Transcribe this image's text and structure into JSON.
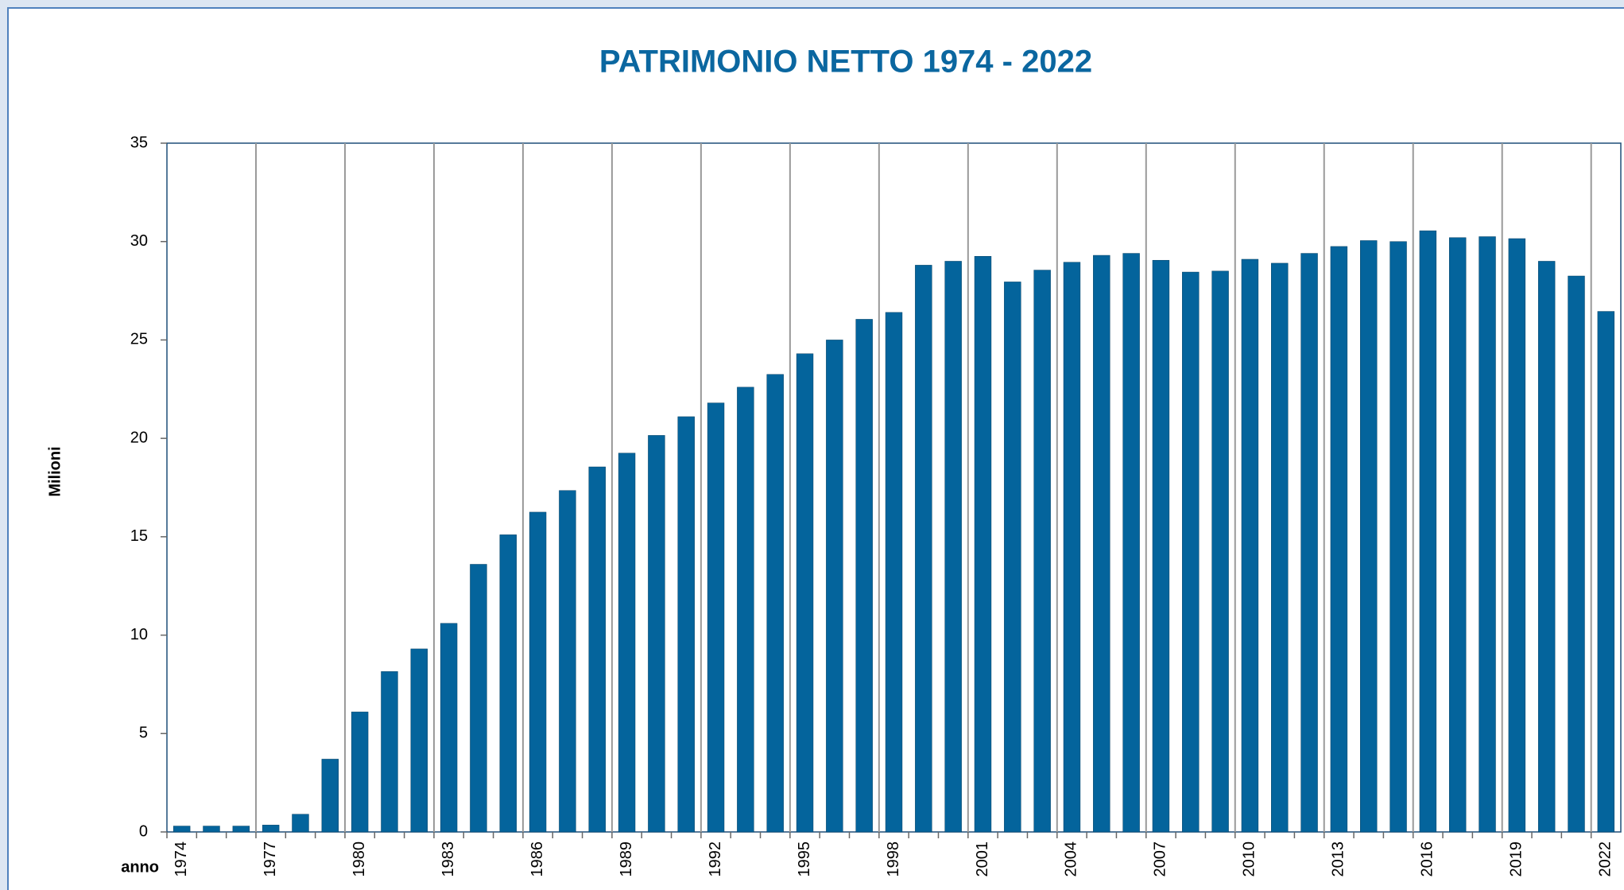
{
  "chart_data": {
    "type": "bar",
    "title": "PATRIMONIO NETTO 1974 - 2022",
    "y_label": "Milioni",
    "x_label": "anno",
    "categories": [
      "1974",
      null,
      null,
      "1977",
      null,
      null,
      "1980",
      null,
      null,
      "1983",
      null,
      null,
      "1986",
      null,
      null,
      "1989",
      null,
      null,
      "1992",
      null,
      null,
      "1995",
      null,
      null,
      "1998",
      null,
      null,
      "2001",
      null,
      null,
      "2004",
      null,
      null,
      "2007",
      null,
      null,
      "2010",
      null,
      null,
      "2013",
      null,
      null,
      "2016",
      null,
      null,
      "2019",
      null,
      null,
      "2022"
    ],
    "values": [
      0.3,
      0.3,
      0.3,
      0.35,
      0.9,
      3.7,
      6.1,
      8.15,
      9.3,
      10.6,
      13.6,
      15.1,
      16.25,
      17.35,
      18.55,
      19.25,
      20.15,
      21.1,
      21.8,
      22.6,
      23.25,
      24.3,
      25.0,
      26.05,
      26.4,
      28.8,
      29.0,
      29.25,
      27.95,
      28.55,
      28.95,
      29.3,
      29.4,
      29.05,
      28.45,
      28.5,
      29.1,
      28.9,
      29.4,
      29.75,
      30.05,
      30.0,
      30.55,
      30.2,
      30.25,
      30.15,
      29.0,
      28.25,
      26.45
    ],
    "color": "#04649c",
    "ylim": [
      0,
      35
    ],
    "yticks": [
      0,
      5,
      10,
      15,
      20,
      25,
      30,
      35
    ],
    "grid": false
  }
}
